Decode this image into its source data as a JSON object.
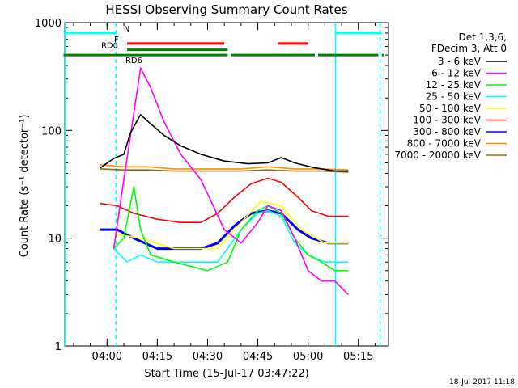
{
  "chart_data": {
    "type": "line",
    "title": "HESSI Observing Summary Count Rates",
    "xlabel": "Start Time (15-Jul-17 03:47:22)",
    "ylabel": "Count Rate (s⁻¹ detector⁻¹)",
    "y_scale": "log",
    "ylim": [
      1,
      1000
    ],
    "xlim": [
      "03:47:22",
      "05:24:00"
    ],
    "x_ticks": [
      "04:00",
      "04:15",
      "04:30",
      "04:45",
      "05:00",
      "05:15"
    ],
    "y_ticks": [
      "1",
      "10",
      "100",
      "1000"
    ],
    "grid": false,
    "legend_position": "right",
    "legend_header": [
      "Det 1,3,6,",
      "FDecim 3, Att 0"
    ],
    "timestamp": "18-Jul-2017 11:18",
    "flag_bars": [
      {
        "label": "N",
        "color": "#00ffff",
        "level": 800,
        "segments": [
          [
            "03:47",
            "04:03"
          ],
          [
            "05:08",
            "05:22"
          ]
        ]
      },
      {
        "label": "F",
        "color": "#ff0000",
        "level": 640,
        "segments": [
          [
            "04:06",
            "04:35"
          ],
          [
            "04:51",
            "05:00"
          ]
        ]
      },
      {
        "label": "RD0",
        "color": "#008000",
        "level": 560,
        "segments": [
          [
            "04:06",
            "04:36"
          ]
        ]
      },
      {
        "label": "RD6",
        "color": "#008000",
        "level": 500,
        "segments": [
          [
            "03:47",
            "04:36"
          ],
          [
            "04:37",
            "05:02"
          ],
          [
            "05:03",
            "05:21"
          ],
          [
            "05:22",
            "05:22"
          ]
        ]
      }
    ],
    "vertical_markers": [
      {
        "time": "03:47:30",
        "color": "#00ffff",
        "style": "solid"
      },
      {
        "time": "04:02:40",
        "color": "#00ffff",
        "style": "dashed"
      },
      {
        "time": "05:08:10",
        "color": "#00ffff",
        "style": "solid"
      },
      {
        "time": "05:21:30",
        "color": "#00ffff",
        "style": "dashed"
      }
    ],
    "series": [
      {
        "name": "3 - 6 keV",
        "color": "#000000",
        "x": [
          "03:58",
          "04:02",
          "04:05",
          "04:07",
          "04:10",
          "04:13",
          "04:17",
          "04:22",
          "04:28",
          "04:35",
          "04:42",
          "04:48",
          "04:52",
          "04:56",
          "05:02",
          "05:08",
          "05:12"
        ],
        "y": [
          45,
          55,
          60,
          95,
          140,
          115,
          90,
          72,
          60,
          52,
          49,
          50,
          56,
          50,
          45,
          42,
          42
        ]
      },
      {
        "name": "6 - 12 keV",
        "color": "#ff00ff",
        "x": [
          "04:02",
          "04:05",
          "04:07",
          "04:10",
          "04:13",
          "04:17",
          "04:22",
          "04:28",
          "04:35",
          "04:40",
          "04:45",
          "04:48",
          "04:52",
          "04:56",
          "05:00",
          "05:04",
          "05:08",
          "05:12"
        ],
        "y": [
          8,
          35,
          90,
          380,
          250,
          120,
          60,
          35,
          12,
          9,
          14,
          20,
          18,
          10,
          5,
          4,
          4,
          3
        ]
      },
      {
        "name": "12 - 25 keV",
        "color": "#00ff00",
        "x": [
          "04:02",
          "04:05",
          "04:08",
          "04:10",
          "04:13",
          "04:20",
          "04:30",
          "04:36",
          "04:40",
          "04:45",
          "04:48",
          "04:52",
          "04:56",
          "05:00",
          "05:04",
          "05:08",
          "05:12"
        ],
        "y": [
          8,
          10,
          30,
          12,
          7,
          6,
          5,
          6,
          12,
          18,
          20,
          17,
          10,
          7,
          6,
          5,
          5
        ]
      },
      {
        "name": "25 - 50 keV",
        "color": "#00ffff",
        "x": [
          "04:02",
          "04:06",
          "04:10",
          "04:15",
          "04:25",
          "04:33",
          "04:40",
          "04:45",
          "04:48",
          "04:52",
          "04:56",
          "05:00",
          "05:05",
          "05:12"
        ],
        "y": [
          8,
          6,
          7,
          6,
          6,
          6,
          12,
          17,
          18,
          16,
          9,
          7,
          6,
          6
        ]
      },
      {
        "name": "50 - 100 keV",
        "color": "#ffff00",
        "x": [
          "04:02",
          "04:10",
          "04:20",
          "04:33",
          "04:40",
          "04:46",
          "04:52",
          "04:58",
          "05:05",
          "05:12"
        ],
        "y": [
          11,
          10,
          8,
          8,
          14,
          22,
          20,
          12,
          9,
          9
        ]
      },
      {
        "name": "100 - 300 keV",
        "color": "#ff0000",
        "x": [
          "03:58",
          "04:03",
          "04:08",
          "04:15",
          "04:22",
          "04:28",
          "04:33",
          "04:38",
          "04:43",
          "04:48",
          "04:52",
          "04:57",
          "05:01",
          "05:06",
          "05:12"
        ],
        "y": [
          21,
          20,
          17,
          15,
          14,
          14,
          17,
          24,
          32,
          36,
          33,
          24,
          18,
          16,
          16
        ]
      },
      {
        "name": "300 - 800 keV",
        "color": "#0000ff",
        "x": [
          "03:58",
          "04:03",
          "04:08",
          "04:15",
          "04:22",
          "04:28",
          "04:33",
          "04:38",
          "04:43",
          "04:48",
          "04:52",
          "04:57",
          "05:01",
          "05:06",
          "05:12"
        ],
        "y": [
          12,
          12,
          10,
          8,
          8,
          8,
          9,
          13,
          17,
          18,
          17,
          12,
          10,
          9,
          9
        ]
      },
      {
        "name": "800 - 7000 keV",
        "color": "#ff8c00",
        "x": [
          "03:58",
          "04:05",
          "04:12",
          "04:20",
          "04:30",
          "04:40",
          "04:48",
          "04:56",
          "05:04",
          "05:12"
        ],
        "y": [
          48,
          46,
          46,
          44,
          44,
          44,
          46,
          44,
          44,
          43
        ]
      },
      {
        "name": "7000 - 20000 keV",
        "color": "#8b6914",
        "x": [
          "03:58",
          "04:05",
          "04:12",
          "04:20",
          "04:30",
          "04:40",
          "04:48",
          "04:56",
          "05:04",
          "05:12"
        ],
        "y": [
          44,
          43,
          43,
          42,
          42,
          42,
          43,
          42,
          42,
          41
        ]
      }
    ]
  }
}
